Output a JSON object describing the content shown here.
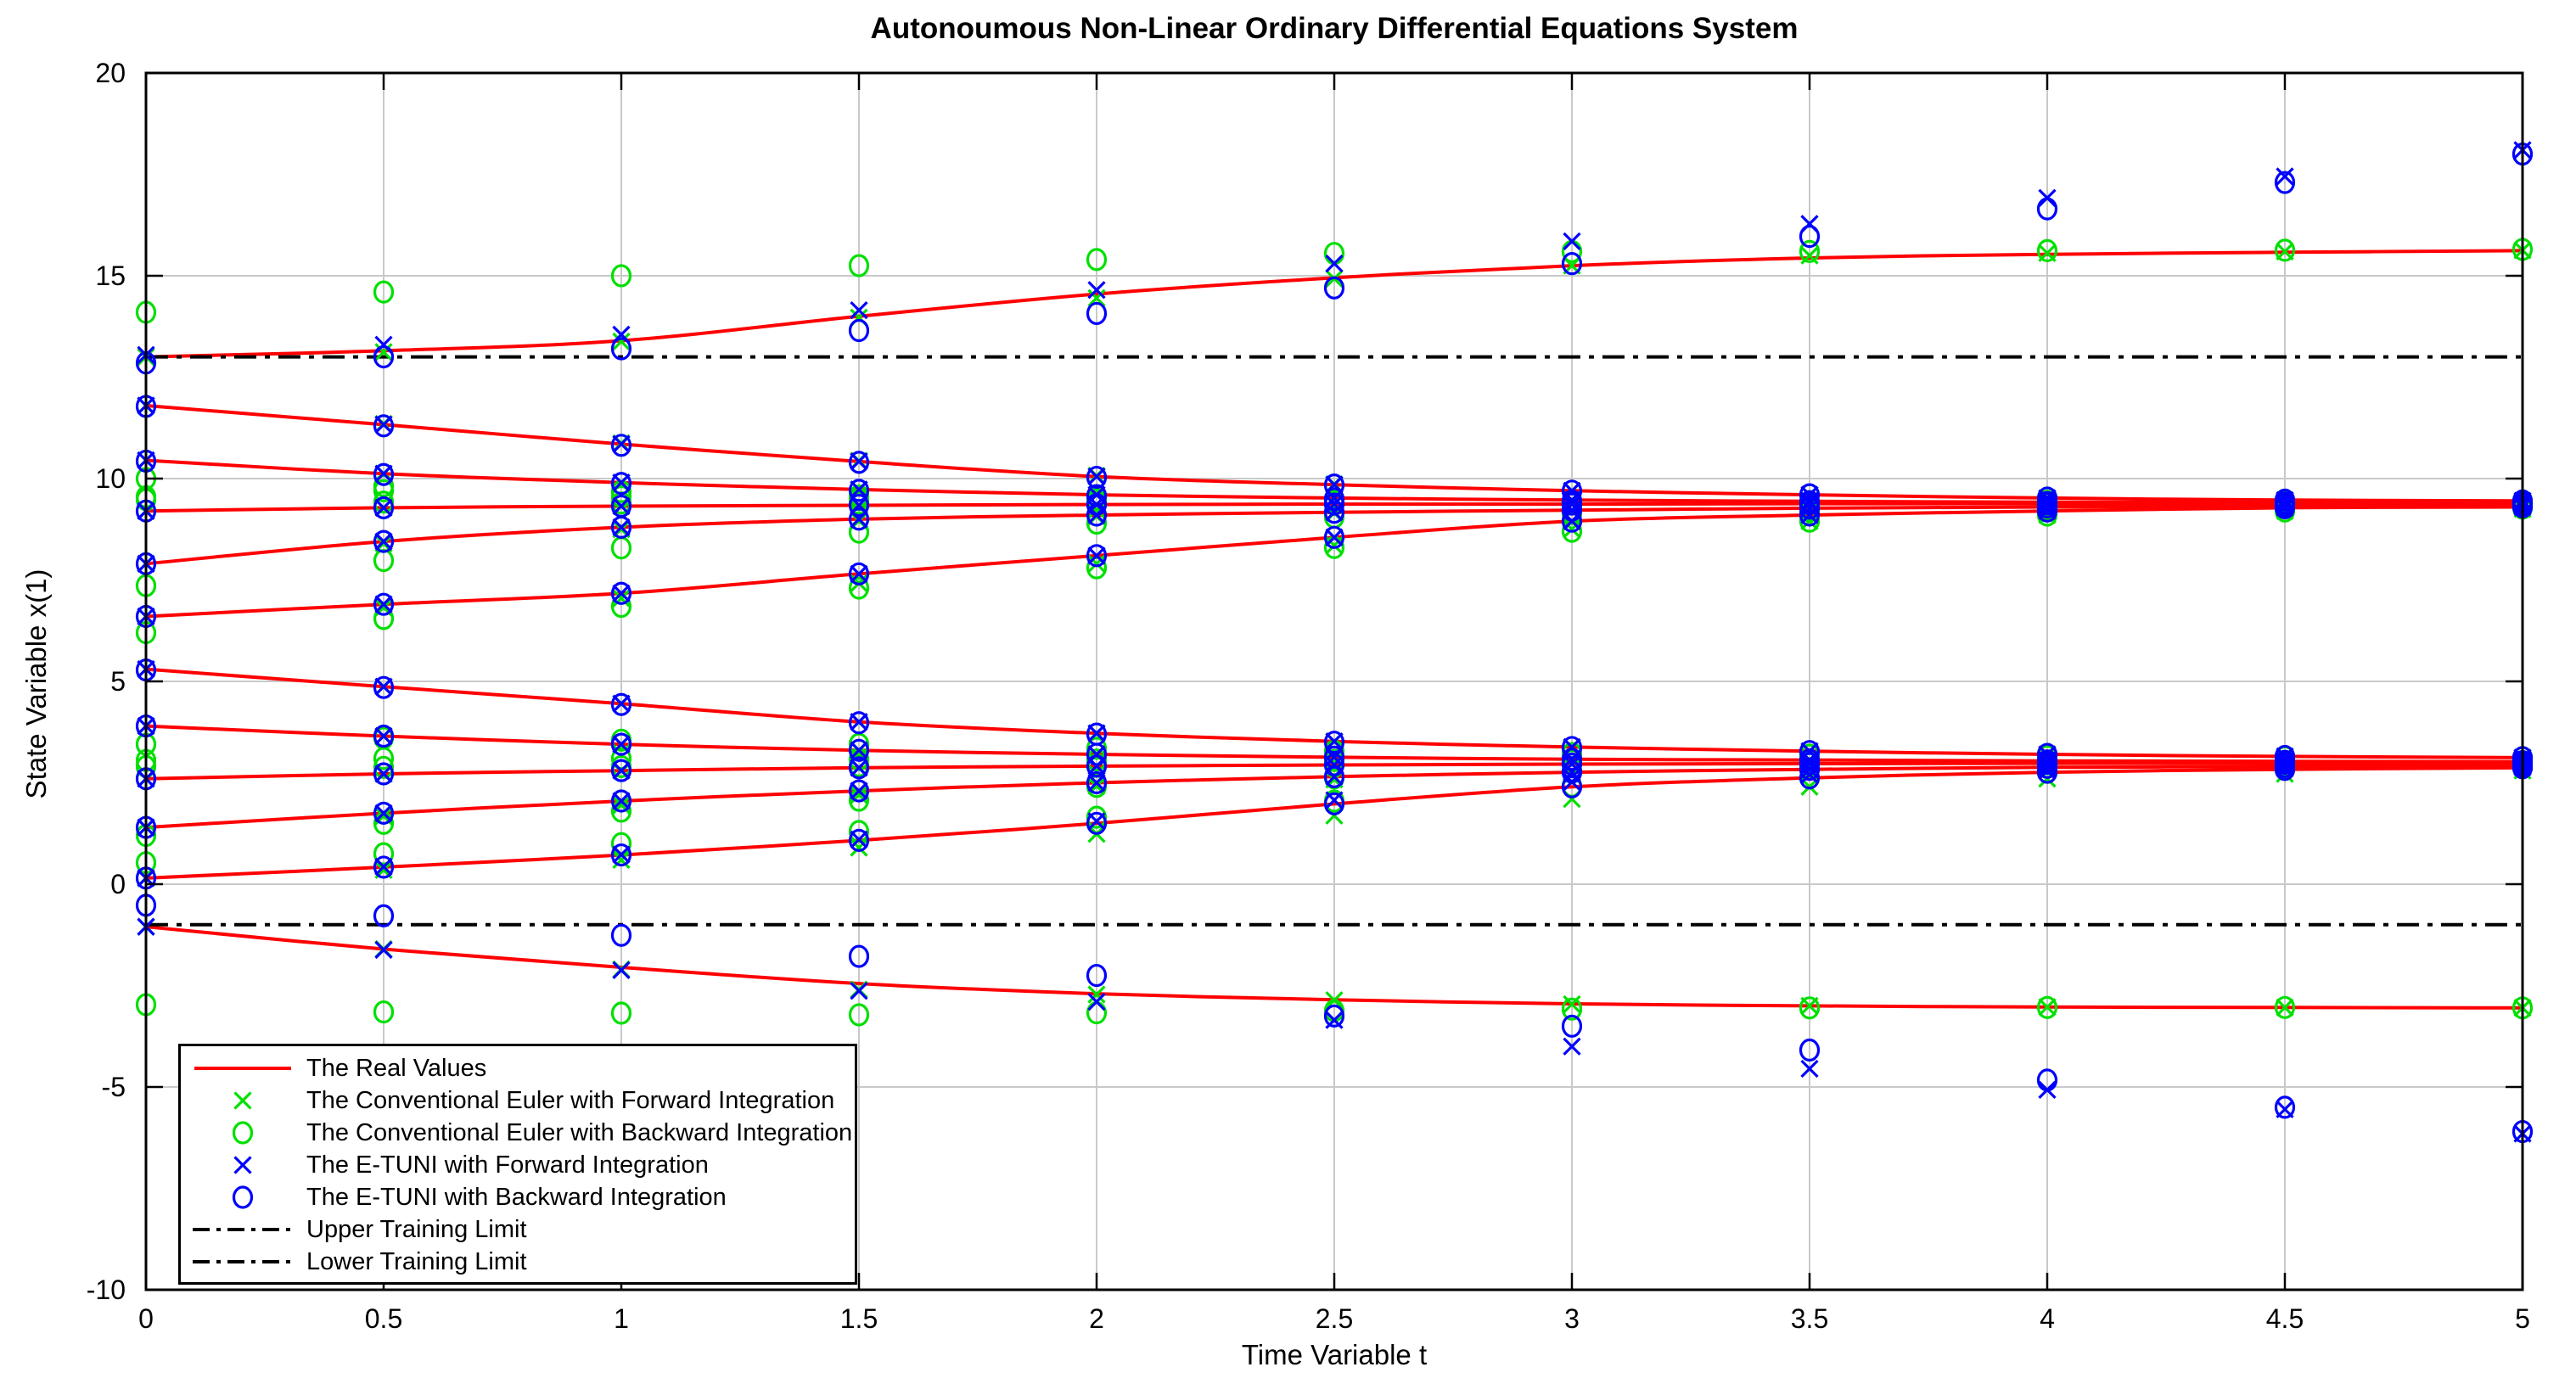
{
  "chart_data": {
    "type": "line",
    "title": "Autonoumous Non-Linear Ordinary Differential Equations System",
    "xlabel": "Time Variable t",
    "ylabel": "State Variable x(1)",
    "xlim": [
      0,
      5
    ],
    "ylim": [
      -10,
      20
    ],
    "grid": true,
    "xtick_values": [
      0,
      0.5,
      1,
      1.5,
      2,
      2.5,
      3,
      3.5,
      4,
      4.5,
      5
    ],
    "xtick_labels": [
      "0",
      "0.5",
      "1",
      "1.5",
      "2",
      "2.5",
      "3",
      "3.5",
      "4",
      "4.5",
      "5"
    ],
    "ytick_values": [
      -10,
      -5,
      0,
      5,
      10,
      15,
      20
    ],
    "ytick_labels": [
      "-10",
      "-5",
      "0",
      "5",
      "10",
      "15",
      "20"
    ],
    "time": [
      0,
      0.5,
      1,
      1.5,
      2,
      2.5,
      3,
      3.5,
      4,
      4.5,
      5
    ],
    "upper_training_limit": 13,
    "lower_training_limit": -1,
    "colors": {
      "real": "#ff0000",
      "euler": "#00e000",
      "etuni": "#0000ff",
      "limits": "#000000",
      "grid": "#c9c9c9",
      "axis": "#000000"
    },
    "legend": [
      {
        "label": "The Real Values",
        "type": "line",
        "color": "#ff0000"
      },
      {
        "label": "The Conventional Euler with Forward Integration",
        "type": "x",
        "color": "#00e000"
      },
      {
        "label": "The Conventional Euler with Backward Integration",
        "type": "o",
        "color": "#00e000"
      },
      {
        "label": "The E-TUNI with Forward Integration",
        "type": "x",
        "color": "#0000ff"
      },
      {
        "label": "The E-TUNI with Backward Integration",
        "type": "o",
        "color": "#0000ff"
      },
      {
        "label": "Upper Training Limit",
        "type": "dashdot",
        "color": "#000000"
      },
      {
        "label": "Lower Training Limit",
        "type": "dashdot",
        "color": "#000000"
      }
    ],
    "trajectories": [
      {
        "name": "x0=13.0",
        "real": [
          13.0,
          13.15,
          13.4,
          14.0,
          14.55,
          14.95,
          15.25,
          15.44,
          15.53,
          15.58,
          15.62
        ],
        "euler_forward": [
          13.0,
          13.12,
          13.38,
          13.97,
          14.45,
          14.93,
          15.25,
          15.5,
          15.56,
          15.6,
          15.63
        ],
        "euler_backward": [
          14.1,
          14.6,
          15.0,
          15.25,
          15.4,
          15.55,
          15.6,
          15.6,
          15.62,
          15.63,
          15.65
        ],
        "etuni_forward": [
          13.05,
          13.3,
          13.55,
          14.15,
          14.65,
          15.3,
          15.85,
          16.28,
          16.92,
          17.45,
          18.1
        ],
        "etuni_backward": [
          12.85,
          13.0,
          13.2,
          13.65,
          14.07,
          14.7,
          15.3,
          15.97,
          16.65,
          17.3,
          18.0
        ]
      },
      {
        "name": "x0=11.8",
        "real": [
          11.8,
          11.33,
          10.85,
          10.42,
          10.05,
          9.85,
          9.7,
          9.6,
          9.52,
          9.47,
          9.45
        ],
        "euler_forward": [
          11.8,
          11.35,
          10.87,
          10.44,
          10.07,
          9.86,
          9.7,
          9.6,
          9.52,
          9.47,
          9.45
        ],
        "euler_backward": [
          9.55,
          9.7,
          9.55,
          9.48,
          9.45,
          9.43,
          9.42,
          9.43,
          9.44,
          9.44,
          9.45
        ],
        "etuni_forward": [
          11.8,
          11.33,
          10.85,
          10.42,
          10.05,
          9.85,
          9.7,
          9.6,
          9.52,
          9.47,
          9.45
        ],
        "etuni_backward": [
          11.78,
          11.3,
          10.82,
          10.4,
          10.03,
          9.84,
          9.69,
          9.6,
          9.52,
          9.47,
          9.45
        ]
      },
      {
        "name": "x0=10.45",
        "real": [
          10.45,
          10.12,
          9.9,
          9.73,
          9.6,
          9.52,
          9.47,
          9.44,
          9.42,
          9.41,
          9.4
        ],
        "euler_forward": [
          10.45,
          10.12,
          9.9,
          9.73,
          9.6,
          9.52,
          9.47,
          9.44,
          9.42,
          9.41,
          9.4
        ],
        "euler_backward": [
          10.0,
          9.82,
          9.68,
          9.57,
          9.5,
          9.45,
          9.42,
          9.41,
          9.4,
          9.4,
          9.4
        ],
        "etuni_forward": [
          10.45,
          10.12,
          9.9,
          9.73,
          9.6,
          9.52,
          9.47,
          9.44,
          9.42,
          9.41,
          9.4
        ],
        "etuni_backward": [
          10.43,
          10.1,
          9.88,
          9.71,
          9.58,
          9.5,
          9.45,
          9.43,
          9.41,
          9.4,
          9.4
        ]
      },
      {
        "name": "x0=9.2",
        "real": [
          9.2,
          9.28,
          9.32,
          9.34,
          9.36,
          9.37,
          9.37,
          9.38,
          9.38,
          9.38,
          9.38
        ],
        "euler_forward": [
          9.2,
          9.28,
          9.32,
          9.34,
          9.36,
          9.37,
          9.37,
          9.38,
          9.38,
          9.38,
          9.38
        ],
        "euler_backward": [
          9.48,
          9.42,
          9.4,
          9.39,
          9.38,
          9.38,
          9.38,
          9.38,
          9.38,
          9.38,
          9.38
        ],
        "etuni_forward": [
          9.2,
          9.28,
          9.32,
          9.34,
          9.36,
          9.37,
          9.37,
          9.38,
          9.38,
          9.38,
          9.38
        ],
        "etuni_backward": [
          9.2,
          9.28,
          9.32,
          9.34,
          9.36,
          9.37,
          9.37,
          9.38,
          9.38,
          9.38,
          9.38
        ]
      },
      {
        "name": "x0=7.9",
        "real": [
          7.9,
          8.45,
          8.8,
          9.0,
          9.1,
          9.17,
          9.22,
          9.27,
          9.3,
          9.32,
          9.33
        ],
        "euler_forward": [
          7.9,
          8.4,
          8.75,
          8.96,
          9.07,
          9.15,
          9.2,
          9.25,
          9.29,
          9.31,
          9.32
        ],
        "euler_backward": [
          7.36,
          7.98,
          8.29,
          8.68,
          8.9,
          9.05,
          9.14,
          9.2,
          9.25,
          9.29,
          9.31
        ],
        "etuni_forward": [
          7.9,
          8.45,
          8.8,
          9.0,
          9.1,
          9.17,
          9.22,
          9.27,
          9.3,
          9.32,
          9.33
        ],
        "etuni_backward": [
          7.9,
          8.45,
          8.8,
          9.0,
          9.1,
          9.17,
          9.22,
          9.27,
          9.3,
          9.32,
          9.33
        ]
      },
      {
        "name": "x0=6.6",
        "real": [
          6.6,
          6.9,
          7.17,
          7.65,
          8.1,
          8.55,
          8.95,
          9.1,
          9.2,
          9.28,
          9.3
        ],
        "euler_forward": [
          6.6,
          6.82,
          7.05,
          7.42,
          7.9,
          8.35,
          8.75,
          8.95,
          9.1,
          9.2,
          9.25
        ],
        "euler_backward": [
          6.2,
          6.55,
          6.85,
          7.3,
          7.8,
          8.3,
          8.7,
          8.95,
          9.1,
          9.2,
          9.27
        ],
        "etuni_forward": [
          6.6,
          6.9,
          7.17,
          7.65,
          8.1,
          8.55,
          8.95,
          9.1,
          9.2,
          9.28,
          9.3
        ],
        "etuni_backward": [
          6.6,
          6.9,
          7.17,
          7.65,
          8.1,
          8.55,
          8.95,
          9.1,
          9.2,
          9.28,
          9.3
        ]
      },
      {
        "name": "x0=5.3",
        "real": [
          5.3,
          4.87,
          4.45,
          4.0,
          3.72,
          3.52,
          3.38,
          3.28,
          3.2,
          3.15,
          3.12
        ],
        "euler_forward": [
          5.3,
          4.87,
          4.45,
          4.0,
          3.72,
          3.52,
          3.38,
          3.28,
          3.2,
          3.15,
          3.12
        ],
        "euler_backward": [
          3.45,
          3.6,
          3.55,
          3.45,
          3.35,
          3.28,
          3.22,
          3.18,
          3.15,
          3.13,
          3.12
        ],
        "etuni_forward": [
          5.3,
          4.87,
          4.45,
          4.0,
          3.72,
          3.52,
          3.38,
          3.28,
          3.2,
          3.15,
          3.12
        ],
        "etuni_backward": [
          5.28,
          4.85,
          4.43,
          3.98,
          3.7,
          3.5,
          3.37,
          3.27,
          3.2,
          3.15,
          3.12
        ]
      },
      {
        "name": "x0=3.9",
        "real": [
          3.9,
          3.65,
          3.45,
          3.3,
          3.2,
          3.13,
          3.08,
          3.06,
          3.04,
          3.03,
          3.02
        ],
        "euler_forward": [
          3.9,
          3.65,
          3.45,
          3.3,
          3.2,
          3.13,
          3.08,
          3.06,
          3.04,
          3.03,
          3.02
        ],
        "euler_backward": [
          3.05,
          3.1,
          3.1,
          3.08,
          3.06,
          3.05,
          3.04,
          3.03,
          3.03,
          3.02,
          3.02
        ],
        "etuni_forward": [
          3.9,
          3.65,
          3.45,
          3.3,
          3.2,
          3.13,
          3.08,
          3.06,
          3.04,
          3.03,
          3.02
        ],
        "etuni_backward": [
          3.9,
          3.65,
          3.45,
          3.3,
          3.2,
          3.13,
          3.08,
          3.06,
          3.04,
          3.03,
          3.02
        ]
      },
      {
        "name": "x0=2.6",
        "real": [
          2.6,
          2.72,
          2.8,
          2.87,
          2.91,
          2.94,
          2.96,
          2.97,
          2.98,
          2.98,
          2.98
        ],
        "euler_forward": [
          2.6,
          2.72,
          2.8,
          2.87,
          2.91,
          2.94,
          2.96,
          2.97,
          2.98,
          2.98,
          2.98
        ],
        "euler_backward": [
          2.9,
          2.88,
          2.9,
          2.92,
          2.94,
          2.95,
          2.96,
          2.97,
          2.98,
          2.98,
          2.98
        ],
        "etuni_forward": [
          2.6,
          2.72,
          2.8,
          2.87,
          2.91,
          2.94,
          2.96,
          2.97,
          2.98,
          2.98,
          2.98
        ],
        "etuni_backward": [
          2.6,
          2.72,
          2.8,
          2.87,
          2.91,
          2.94,
          2.96,
          2.97,
          2.98,
          2.98,
          2.98
        ]
      },
      {
        "name": "x0=1.4",
        "real": [
          1.4,
          1.75,
          2.05,
          2.3,
          2.5,
          2.65,
          2.76,
          2.83,
          2.88,
          2.9,
          2.92
        ],
        "euler_forward": [
          1.4,
          1.68,
          1.95,
          2.2,
          2.42,
          2.58,
          2.7,
          2.79,
          2.85,
          2.88,
          2.9
        ],
        "euler_backward": [
          1.2,
          1.5,
          1.8,
          2.07,
          2.41,
          2.62,
          2.79,
          2.85,
          2.88,
          2.9,
          2.92
        ],
        "etuni_forward": [
          1.4,
          1.75,
          2.05,
          2.3,
          2.5,
          2.65,
          2.76,
          2.83,
          2.88,
          2.9,
          2.92
        ],
        "etuni_backward": [
          1.4,
          1.75,
          2.05,
          2.3,
          2.5,
          2.65,
          2.76,
          2.83,
          2.88,
          2.9,
          2.92
        ]
      },
      {
        "name": "x0=0.15",
        "real": [
          0.15,
          0.42,
          0.72,
          1.08,
          1.5,
          1.98,
          2.4,
          2.62,
          2.76,
          2.83,
          2.87
        ],
        "euler_forward": [
          0.15,
          0.35,
          0.6,
          0.9,
          1.24,
          1.69,
          2.1,
          2.4,
          2.6,
          2.72,
          2.8
        ],
        "euler_backward": [
          0.53,
          0.75,
          1.0,
          1.3,
          1.65,
          2.05,
          2.42,
          2.62,
          2.76,
          2.83,
          2.87
        ],
        "etuni_forward": [
          0.15,
          0.43,
          0.73,
          1.1,
          1.55,
          2.07,
          2.52,
          2.7,
          2.8,
          2.85,
          2.88
        ],
        "etuni_backward": [
          0.15,
          0.42,
          0.72,
          1.08,
          1.5,
          1.98,
          2.4,
          2.62,
          2.76,
          2.83,
          2.87
        ]
      },
      {
        "name": "x0=-1.05",
        "real": [
          -1.05,
          -1.6,
          -2.05,
          -2.45,
          -2.7,
          -2.85,
          -2.95,
          -3.0,
          -3.03,
          -3.04,
          -3.05
        ],
        "euler_forward": [
          -1.05,
          -1.6,
          -2.1,
          -2.6,
          -2.72,
          -2.86,
          -2.96,
          -3.0,
          -3.03,
          -3.04,
          -3.05
        ],
        "euler_backward": [
          -2.97,
          -3.15,
          -3.18,
          -3.22,
          -3.17,
          -3.12,
          -3.08,
          -3.05,
          -3.04,
          -3.04,
          -3.05
        ],
        "etuni_forward": [
          -1.05,
          -1.62,
          -2.12,
          -2.63,
          -2.9,
          -3.35,
          -4.0,
          -4.55,
          -5.07,
          -5.55,
          -6.15
        ],
        "etuni_backward": [
          -0.52,
          -0.78,
          -1.26,
          -1.78,
          -2.25,
          -3.25,
          -3.5,
          -4.09,
          -4.83,
          -5.5,
          -6.1
        ]
      }
    ]
  }
}
